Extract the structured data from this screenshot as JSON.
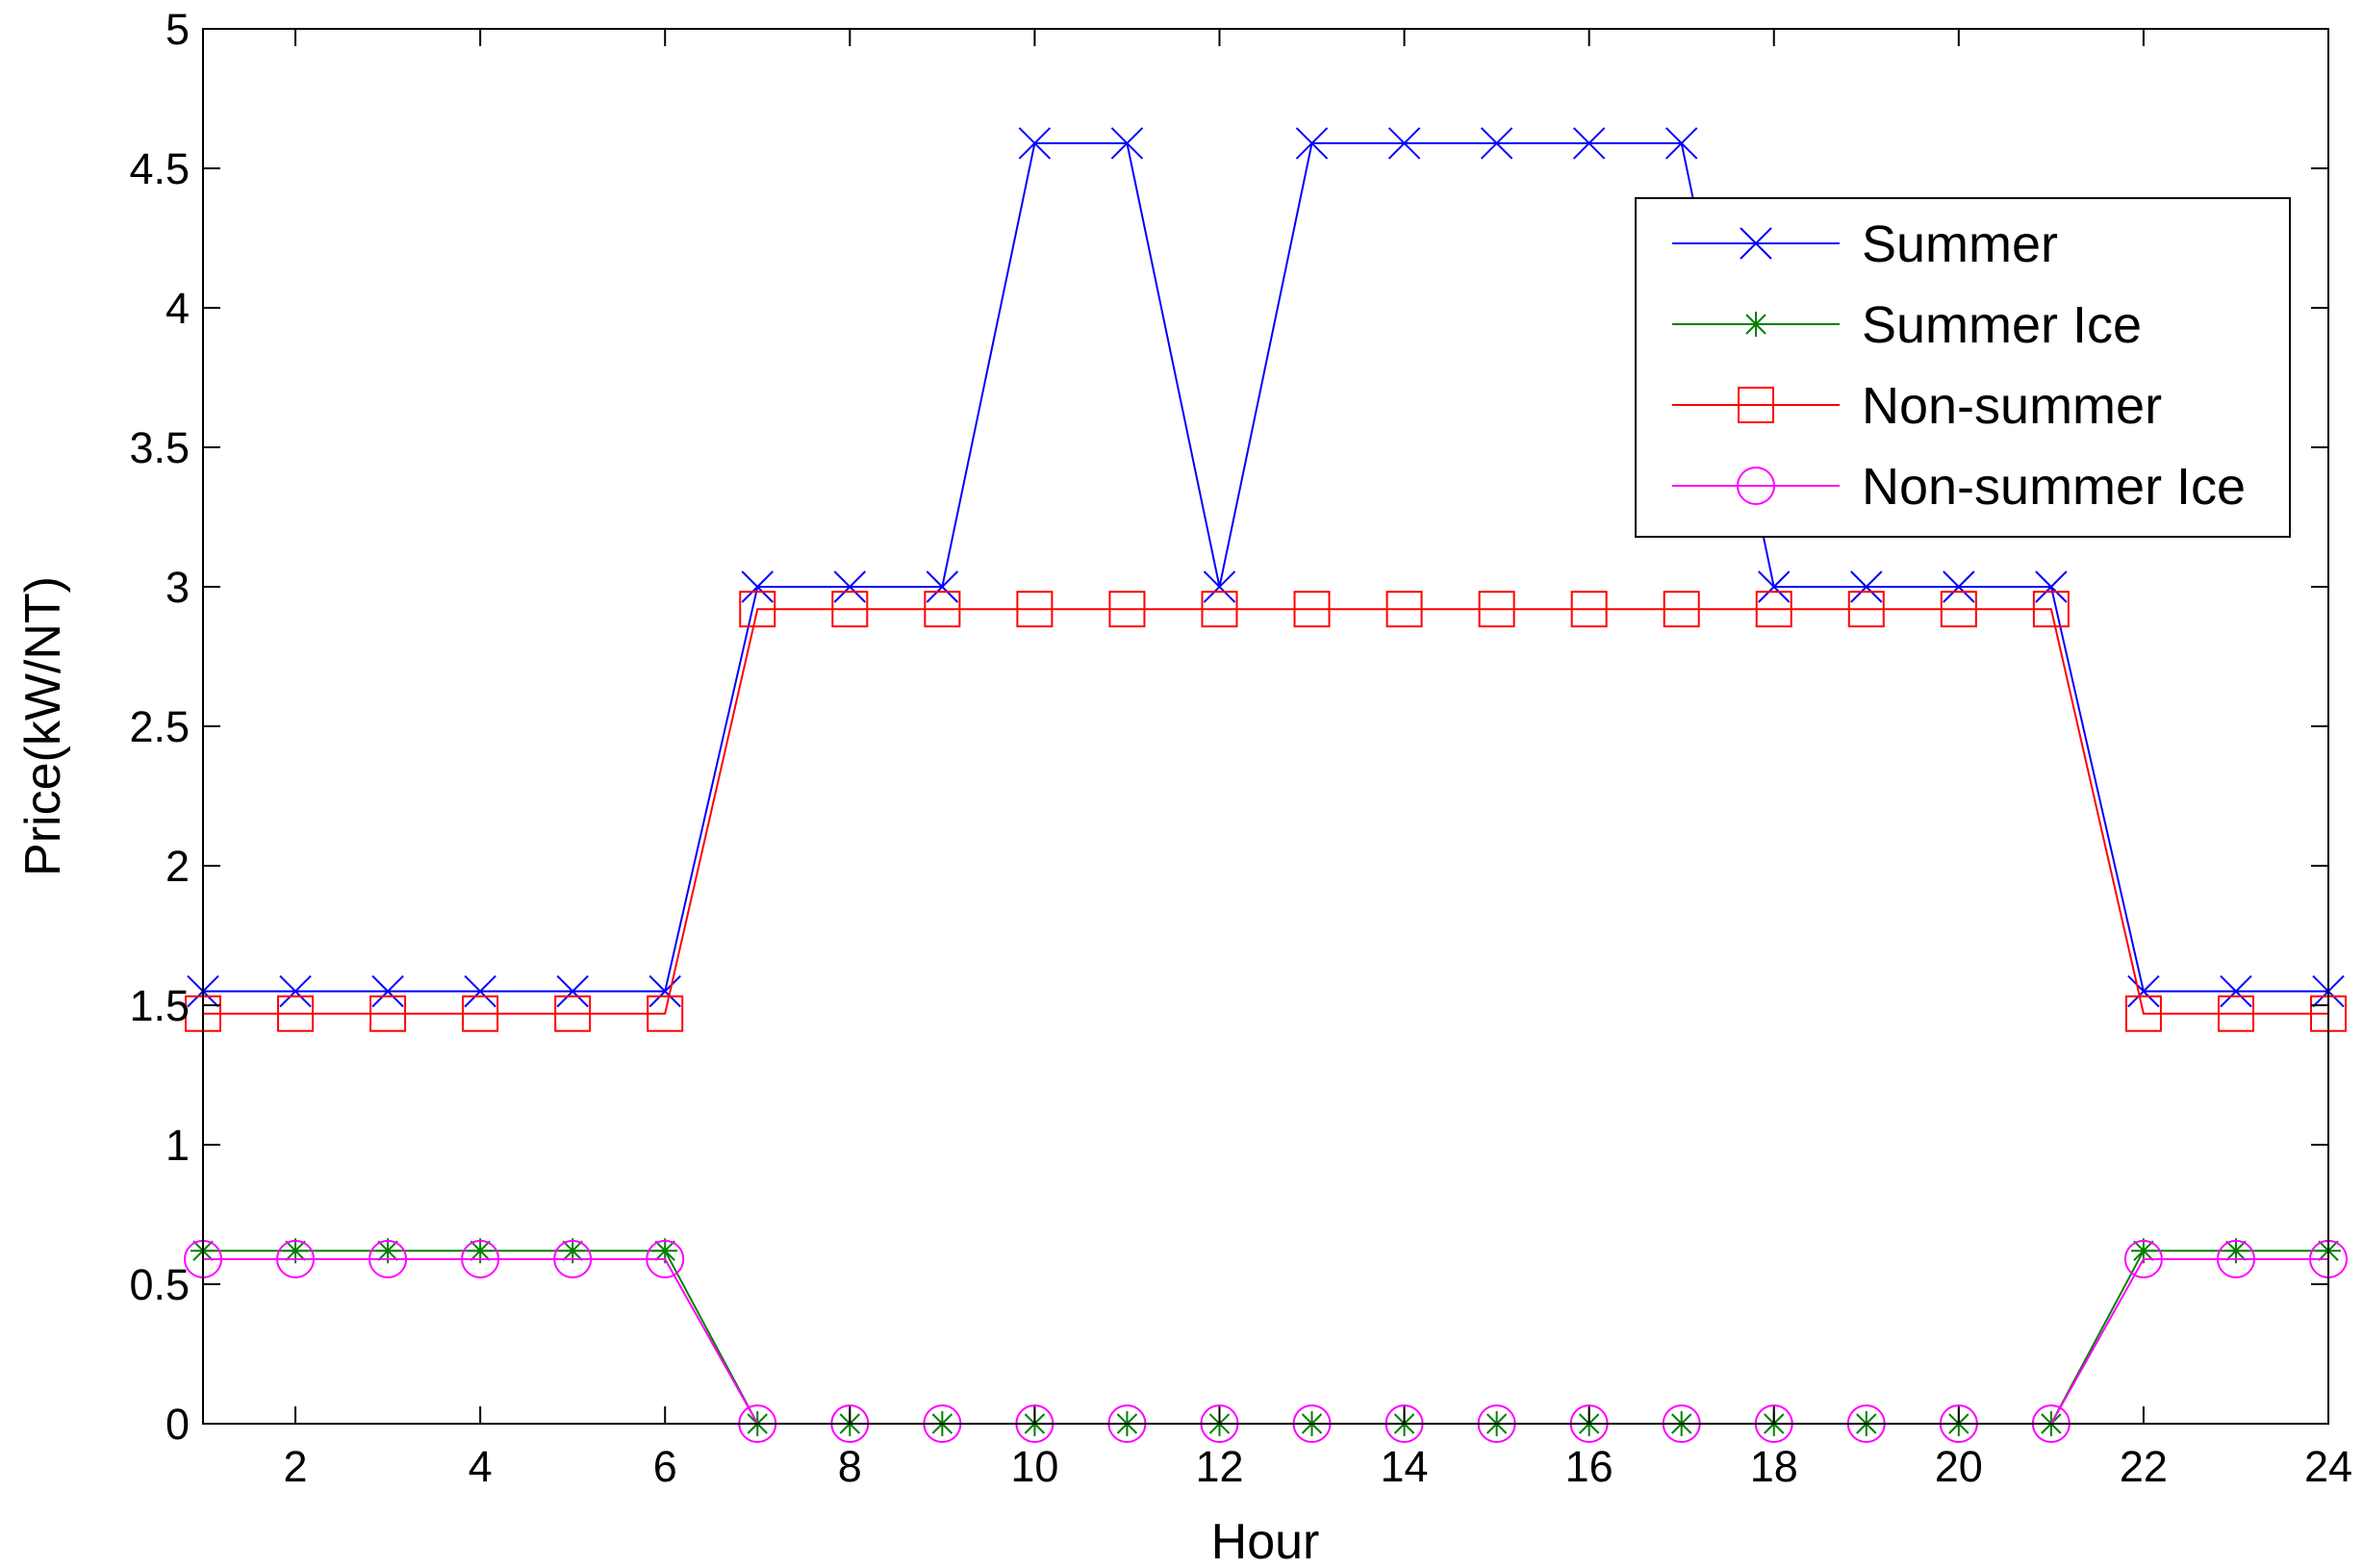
{
  "chart_data": {
    "type": "line",
    "xlabel": "Hour",
    "ylabel": "Price(kW/NT)",
    "xlim": [
      1,
      24
    ],
    "ylim": [
      0,
      5
    ],
    "xticks": [
      2,
      4,
      6,
      8,
      10,
      12,
      14,
      16,
      18,
      20,
      22,
      24
    ],
    "yticks": [
      0,
      0.5,
      1,
      1.5,
      2,
      2.5,
      3,
      3.5,
      4,
      4.5,
      5
    ],
    "xtick_labels": [
      "2",
      "4",
      "6",
      "8",
      "10",
      "12",
      "14",
      "16",
      "18",
      "20",
      "22",
      "24"
    ],
    "ytick_labels": [
      "0",
      "0.5",
      "1",
      "1.5",
      "2",
      "2.5",
      "3",
      "3.5",
      "4",
      "4.5",
      "5"
    ],
    "grid": false,
    "legend_position": "top-right",
    "x": [
      1,
      2,
      3,
      4,
      5,
      6,
      7,
      8,
      9,
      10,
      11,
      12,
      13,
      14,
      15,
      16,
      17,
      18,
      19,
      20,
      21,
      22,
      23,
      24
    ],
    "series": [
      {
        "name": "Summer",
        "color": "#0000ff",
        "marker": "x",
        "values": [
          1.55,
          1.55,
          1.55,
          1.55,
          1.55,
          1.55,
          3.0,
          3.0,
          3.0,
          4.59,
          4.59,
          3.0,
          4.59,
          4.59,
          4.59,
          4.59,
          4.59,
          3.0,
          3.0,
          3.0,
          3.0,
          1.55,
          1.55,
          1.55
        ]
      },
      {
        "name": "Summer Ice",
        "color": "#008000",
        "marker": "star",
        "values": [
          0.62,
          0.62,
          0.62,
          0.62,
          0.62,
          0.62,
          0,
          0,
          0,
          0,
          0,
          0,
          0,
          0,
          0,
          0,
          0,
          0,
          0,
          0,
          0,
          0.62,
          0.62,
          0.62
        ]
      },
      {
        "name": "Non-summer",
        "color": "#ff0000",
        "marker": "square",
        "values": [
          1.47,
          1.47,
          1.47,
          1.47,
          1.47,
          1.47,
          2.92,
          2.92,
          2.92,
          2.92,
          2.92,
          2.92,
          2.92,
          2.92,
          2.92,
          2.92,
          2.92,
          2.92,
          2.92,
          2.92,
          2.92,
          1.47,
          1.47,
          1.47
        ]
      },
      {
        "name": "Non-summer Ice",
        "color": "#ff00ff",
        "marker": "circle",
        "values": [
          0.59,
          0.59,
          0.59,
          0.59,
          0.59,
          0.59,
          0,
          0,
          0,
          0,
          0,
          0,
          0,
          0,
          0,
          0,
          0,
          0,
          0,
          0,
          0,
          0.59,
          0.59,
          0.59
        ]
      }
    ]
  }
}
